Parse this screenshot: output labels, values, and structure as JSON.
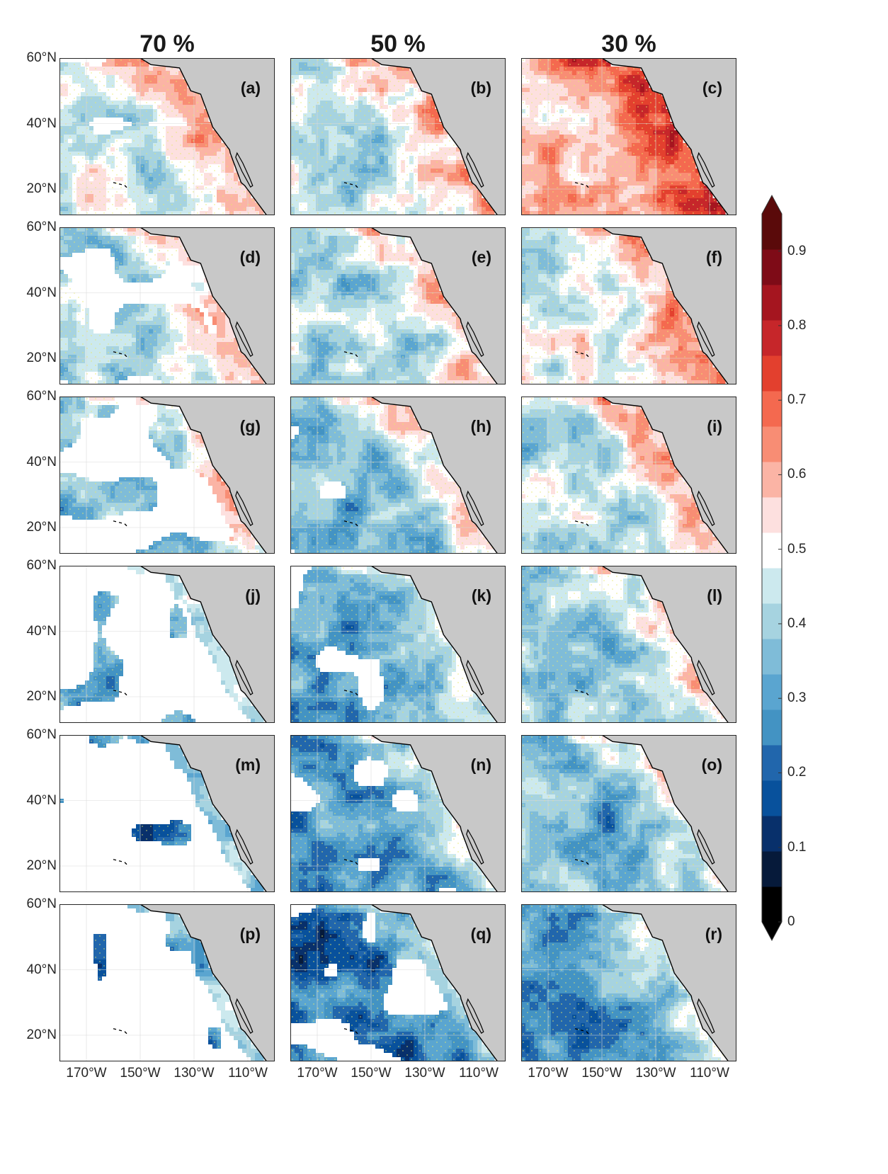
{
  "figure": {
    "column_titles": [
      "70 %",
      "50 %",
      "30 %"
    ]
  },
  "chart_data": {
    "type": "heatmap",
    "title": "",
    "xlabel": "",
    "ylabel": "",
    "panel_grid": {
      "rows": 6,
      "cols": 3
    },
    "panels": [
      {
        "label": "(a)",
        "column": "70 %",
        "blank_fraction": 0.08
      },
      {
        "label": "(b)",
        "column": "50 %",
        "blank_fraction": 0.0
      },
      {
        "label": "(c)",
        "column": "30 %",
        "blank_fraction": 0.0
      },
      {
        "label": "(d)",
        "column": "70 %",
        "blank_fraction": 0.25
      },
      {
        "label": "(e)",
        "column": "50 %",
        "blank_fraction": 0.02
      },
      {
        "label": "(f)",
        "column": "30 %",
        "blank_fraction": 0.0
      },
      {
        "label": "(g)",
        "column": "70 %",
        "blank_fraction": 0.45
      },
      {
        "label": "(h)",
        "column": "50 %",
        "blank_fraction": 0.12
      },
      {
        "label": "(i)",
        "column": "30 %",
        "blank_fraction": 0.0
      },
      {
        "label": "(j)",
        "column": "70 %",
        "blank_fraction": 0.7
      },
      {
        "label": "(k)",
        "column": "50 %",
        "blank_fraction": 0.18
      },
      {
        "label": "(l)",
        "column": "30 %",
        "blank_fraction": 0.0
      },
      {
        "label": "(m)",
        "column": "70 %",
        "blank_fraction": 0.8
      },
      {
        "label": "(n)",
        "column": "50 %",
        "blank_fraction": 0.3
      },
      {
        "label": "(o)",
        "column": "30 %",
        "blank_fraction": 0.02
      },
      {
        "label": "(p)",
        "column": "70 %",
        "blank_fraction": 0.85
      },
      {
        "label": "(q)",
        "column": "50 %",
        "blank_fraction": 0.38
      },
      {
        "label": "(r)",
        "column": "30 %",
        "blank_fraction": 0.02
      }
    ],
    "x_ticks": [
      "170°W",
      "150°W",
      "130°W",
      "110°W"
    ],
    "x_tick_values": [
      -170,
      -150,
      -130,
      -110
    ],
    "x_range": [
      -180,
      -100
    ],
    "y_ticks": [
      "20°N",
      "40°N",
      "60°N"
    ],
    "y_tick_values": [
      20,
      40,
      60
    ],
    "y_range": [
      12,
      60
    ],
    "grid": true,
    "land_color": "#c8c8c8",
    "stipple_color": "#e8e86a",
    "colorbar": {
      "ticks": [
        "0",
        "0.1",
        "0.2",
        "0.3",
        "0.4",
        "0.5",
        "0.6",
        "0.7",
        "0.8",
        "0.9"
      ],
      "tick_values": [
        0,
        0.1,
        0.2,
        0.3,
        0.4,
        0.5,
        0.6,
        0.7,
        0.8,
        0.9
      ],
      "range": [
        0,
        0.95
      ],
      "extend": "both",
      "colors": [
        "#000000",
        "#061a3a",
        "#08306b",
        "#08519c",
        "#2166ac",
        "#4393c3",
        "#5aa5d0",
        "#7fbcd8",
        "#a6d3e0",
        "#cce9ee",
        "#ffffff",
        "#fde0df",
        "#fbb4a5",
        "#f88d74",
        "#f4694f",
        "#e3402e",
        "#c6262a",
        "#a5151f",
        "#7e0b17",
        "#5a0a0a"
      ]
    }
  }
}
